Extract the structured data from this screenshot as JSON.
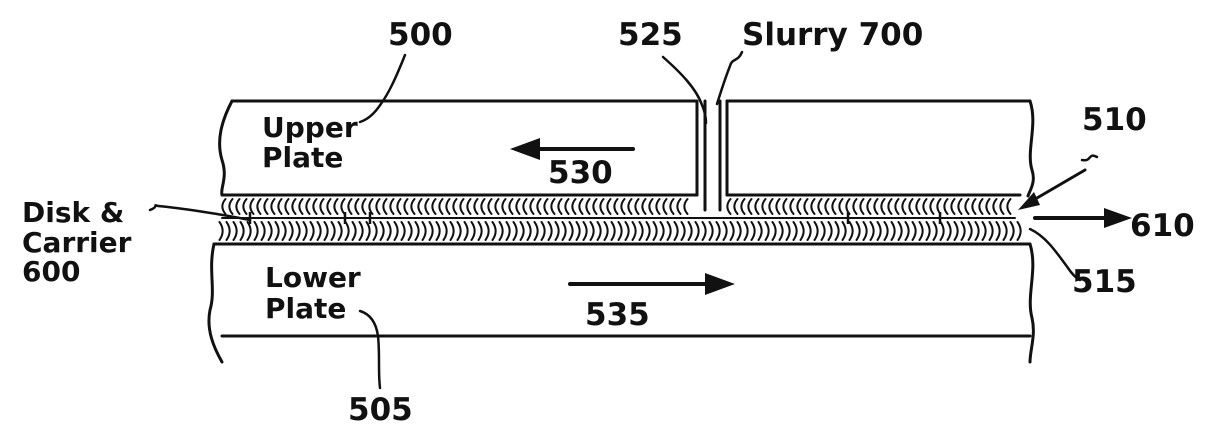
{
  "labels": {
    "upper_plate_number": "500",
    "slurry_inlet_number": "525",
    "slurry_label": "Slurry 700",
    "edge_number_upper": "510",
    "upper_plate_line1": "Upper",
    "upper_plate_line2": "Plate",
    "upper_motion_number": "530",
    "disk_line1": "Disk &",
    "disk_line2": "Carrier",
    "disk_line3": "600",
    "outflow_number": "610",
    "edge_number_lower": "515",
    "lower_plate_line1": "Lower",
    "lower_plate_line2": "Plate",
    "lower_motion_number": "535",
    "lower_plate_number": "505"
  },
  "colors": {
    "ink": "#111111",
    "background": "#ffffff"
  }
}
